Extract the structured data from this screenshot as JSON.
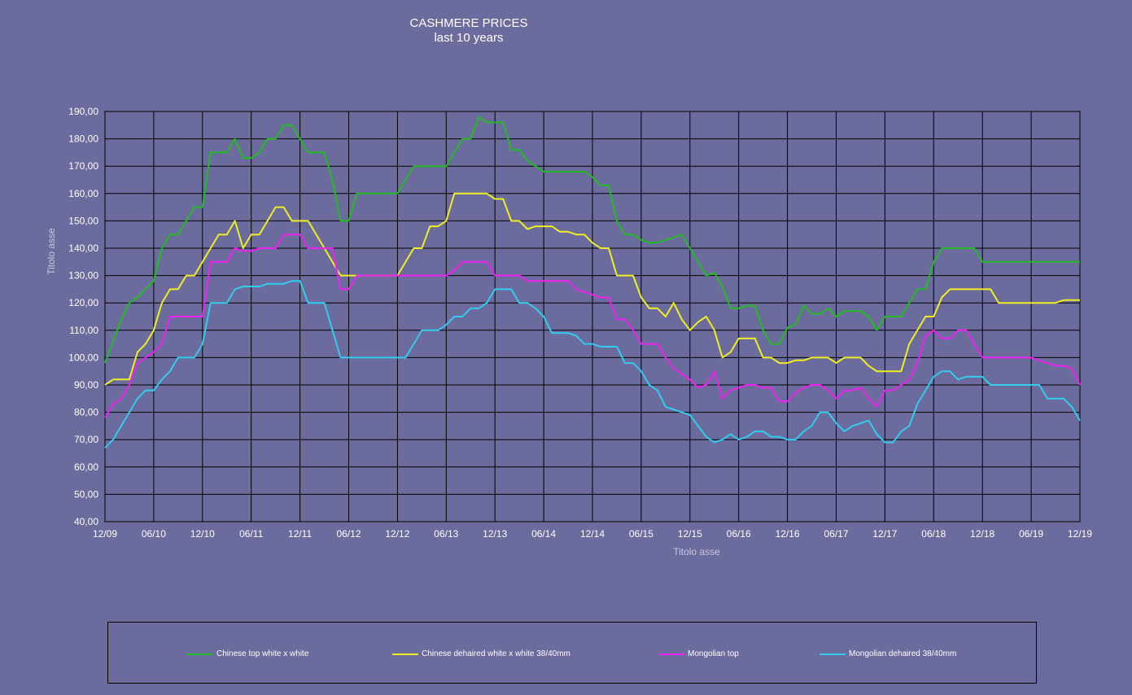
{
  "title": "CASHMERE PRICES",
  "subtitle": "last 10 years",
  "colors": {
    "background": "#6b6b9e",
    "grid": "#000000",
    "text": "#ffffff",
    "axis_title": "#c8c8dc"
  },
  "chart_data": {
    "type": "line",
    "title": "CASHMERE PRICES",
    "subtitle": "last 10 years",
    "xlabel": "Titolo asse",
    "ylabel": "Titolo asse",
    "ylim": [
      40,
      190
    ],
    "yticks": [
      "40,00",
      "50,00",
      "60,00",
      "70,00",
      "80,00",
      "90,00",
      "100,00",
      "110,00",
      "120,00",
      "130,00",
      "140,00",
      "150,00",
      "160,00",
      "170,00",
      "180,00",
      "190,00"
    ],
    "xticks": [
      "12/09",
      "06/10",
      "12/10",
      "06/11",
      "12/11",
      "06/12",
      "12/12",
      "06/13",
      "12/13",
      "06/14",
      "12/14",
      "06/15",
      "12/15",
      "06/16",
      "12/16",
      "06/17",
      "12/17",
      "06/18",
      "12/18",
      "06/19",
      "12/19"
    ],
    "grid": true,
    "legend_position": "bottom",
    "x_months": [
      0,
      1,
      2,
      3,
      4,
      5,
      6,
      7,
      8,
      9,
      10,
      11,
      12,
      13,
      14,
      15,
      16,
      17,
      18,
      19,
      20,
      21,
      22,
      23,
      24,
      25,
      26,
      27,
      28,
      29,
      30,
      31,
      32,
      33,
      34,
      35,
      36,
      37,
      38,
      39,
      40,
      41,
      42,
      43,
      44,
      45,
      46,
      47,
      48,
      49,
      50,
      51,
      52,
      53,
      54,
      55,
      56,
      57,
      58,
      59,
      60,
      61,
      62,
      63,
      64,
      65,
      66,
      67,
      68,
      69,
      70,
      71,
      72,
      73,
      74,
      75,
      76,
      77,
      78,
      79,
      80,
      81,
      82,
      83,
      84,
      85,
      86,
      87,
      88,
      89,
      90,
      91,
      92,
      93,
      94,
      95,
      96,
      97,
      98,
      99,
      100,
      101,
      102,
      103,
      104,
      105,
      106,
      107,
      108,
      109,
      110,
      111,
      112,
      113,
      114,
      115,
      116,
      117,
      118,
      119,
      120
    ],
    "series": [
      {
        "name": "Chinese top white x white",
        "color": "#22bb22",
        "values": [
          98,
          106,
          114,
          120,
          122,
          125,
          128,
          140,
          145,
          145,
          150,
          155,
          155,
          175,
          175,
          175,
          180,
          173,
          173,
          175,
          180,
          180,
          185,
          185,
          180,
          175,
          175,
          175,
          165,
          150,
          150,
          160,
          160,
          160,
          160,
          160,
          160,
          165,
          170,
          170,
          170,
          170,
          170,
          175,
          180,
          180,
          188,
          186,
          186,
          186,
          176,
          176,
          172,
          170,
          168,
          168,
          168,
          168,
          168,
          168,
          166,
          163,
          163,
          150,
          145,
          145,
          143,
          142,
          142,
          143,
          144,
          145,
          140,
          135,
          130,
          131,
          126,
          118,
          118,
          119,
          119,
          110,
          105,
          105,
          111,
          112,
          119,
          116,
          116,
          118,
          115,
          117,
          117,
          117,
          115,
          110,
          115,
          115,
          115,
          120,
          125,
          125,
          135,
          140,
          140,
          140,
          140,
          140,
          135,
          135,
          135,
          135,
          135,
          135,
          135,
          135,
          135,
          135,
          135,
          135,
          135
        ]
      },
      {
        "name": "Chinese dehaired white x white 38/40mm",
        "color": "#eeee22",
        "values": [
          90,
          92,
          92,
          92,
          102,
          105,
          110,
          120,
          125,
          125,
          130,
          130,
          135,
          140,
          145,
          145,
          150,
          140,
          145,
          145,
          150,
          155,
          155,
          150,
          150,
          150,
          145,
          140,
          135,
          130,
          130,
          130,
          130,
          130,
          130,
          130,
          130,
          135,
          140,
          140,
          148,
          148,
          150,
          160,
          160,
          160,
          160,
          160,
          158,
          158,
          150,
          150,
          147,
          148,
          148,
          148,
          146,
          146,
          145,
          145,
          142,
          140,
          140,
          130,
          130,
          130,
          122,
          118,
          118,
          115,
          120,
          114,
          110,
          113,
          115,
          110,
          100,
          102,
          107,
          107,
          107,
          100,
          100,
          98,
          98,
          99,
          99,
          100,
          100,
          100,
          98,
          100,
          100,
          100,
          97,
          95,
          95,
          95,
          95,
          105,
          110,
          115,
          115,
          122,
          125,
          125,
          125,
          125,
          125,
          125,
          120,
          120,
          120,
          120,
          120,
          120,
          120,
          120,
          121,
          121,
          121
        ]
      },
      {
        "name": "Mongolian top",
        "color": "#ee22ee",
        "values": [
          78,
          83,
          85,
          90,
          98,
          100,
          102,
          105,
          115,
          115,
          115,
          115,
          115,
          135,
          135,
          135,
          140,
          139,
          139,
          140,
          140,
          140,
          145,
          145,
          145,
          140,
          140,
          140,
          140,
          125,
          125,
          130,
          130,
          130,
          130,
          130,
          130,
          130,
          130,
          130,
          130,
          130,
          130,
          132,
          135,
          135,
          135,
          135,
          130,
          130,
          130,
          130,
          128,
          128,
          128,
          128,
          128,
          128,
          125,
          124,
          123,
          122,
          122,
          114,
          114,
          110,
          105,
          105,
          105,
          100,
          96,
          94,
          92,
          89,
          90,
          95,
          85,
          88,
          89,
          90,
          90,
          89,
          89,
          84,
          84,
          87,
          89,
          90,
          90,
          88,
          85,
          88,
          88,
          89,
          85,
          82,
          88,
          88,
          90,
          92,
          98,
          108,
          110,
          107,
          107,
          110,
          110,
          105,
          100,
          100,
          100,
          100,
          100,
          100,
          100,
          99,
          98,
          97,
          97,
          96,
          90
        ]
      },
      {
        "name": "Mongolian dehaired 38/40mm",
        "color": "#33ccee",
        "values": [
          67,
          70,
          75,
          80,
          85,
          88,
          88,
          92,
          95,
          100,
          100,
          100,
          105,
          120,
          120,
          120,
          125,
          126,
          126,
          126,
          127,
          127,
          127,
          128,
          128,
          120,
          120,
          120,
          110,
          100,
          100,
          100,
          100,
          100,
          100,
          100,
          100,
          100,
          105,
          110,
          110,
          110,
          112,
          115,
          115,
          118,
          118,
          120,
          125,
          125,
          125,
          120,
          120,
          118,
          115,
          109,
          109,
          109,
          108,
          105,
          105,
          104,
          104,
          104,
          98,
          98,
          95,
          90,
          88,
          82,
          81,
          80,
          79,
          75,
          71,
          69,
          70,
          72,
          70,
          71,
          73,
          73,
          71,
          71,
          70,
          70,
          73,
          75,
          80,
          80,
          76,
          73,
          75,
          76,
          77,
          72,
          69,
          69,
          73,
          75,
          83,
          88,
          93,
          95,
          95,
          92,
          93,
          93,
          93,
          90,
          90,
          90,
          90,
          90,
          90,
          90,
          85,
          85,
          85,
          82,
          77
        ]
      }
    ]
  }
}
